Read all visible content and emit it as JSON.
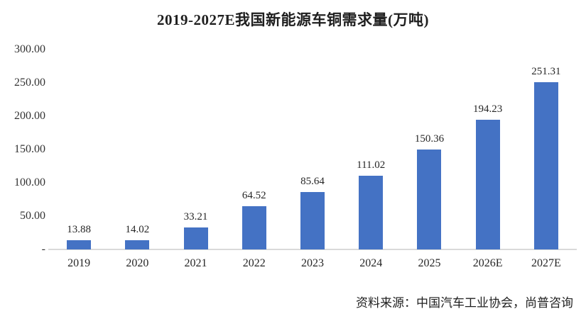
{
  "chart_data": {
    "type": "bar",
    "title": "2019-2027E我国新能源车铜需求量(万吨)",
    "categories": [
      "2019",
      "2020",
      "2021",
      "2022",
      "2023",
      "2024",
      "2025",
      "2026E",
      "2027E"
    ],
    "values": [
      13.88,
      14.02,
      33.21,
      64.52,
      85.64,
      111.02,
      150.36,
      194.23,
      251.31
    ],
    "value_labels": [
      "13.88",
      "14.02",
      "33.21",
      "64.52",
      "85.64",
      "111.02",
      "150.36",
      "194.23",
      "251.31"
    ],
    "y_tick_labels": [
      "300.00",
      "250.00",
      "200.00",
      "150.00",
      "100.00",
      "50.00",
      "-"
    ],
    "ylim": [
      0,
      300
    ],
    "grid": false,
    "legend": false,
    "bar_color": "#4472c4",
    "axis_line_color": "#d9d9d9"
  },
  "source_note": "资料来源：中国汽车工业协会，尚普咨询"
}
